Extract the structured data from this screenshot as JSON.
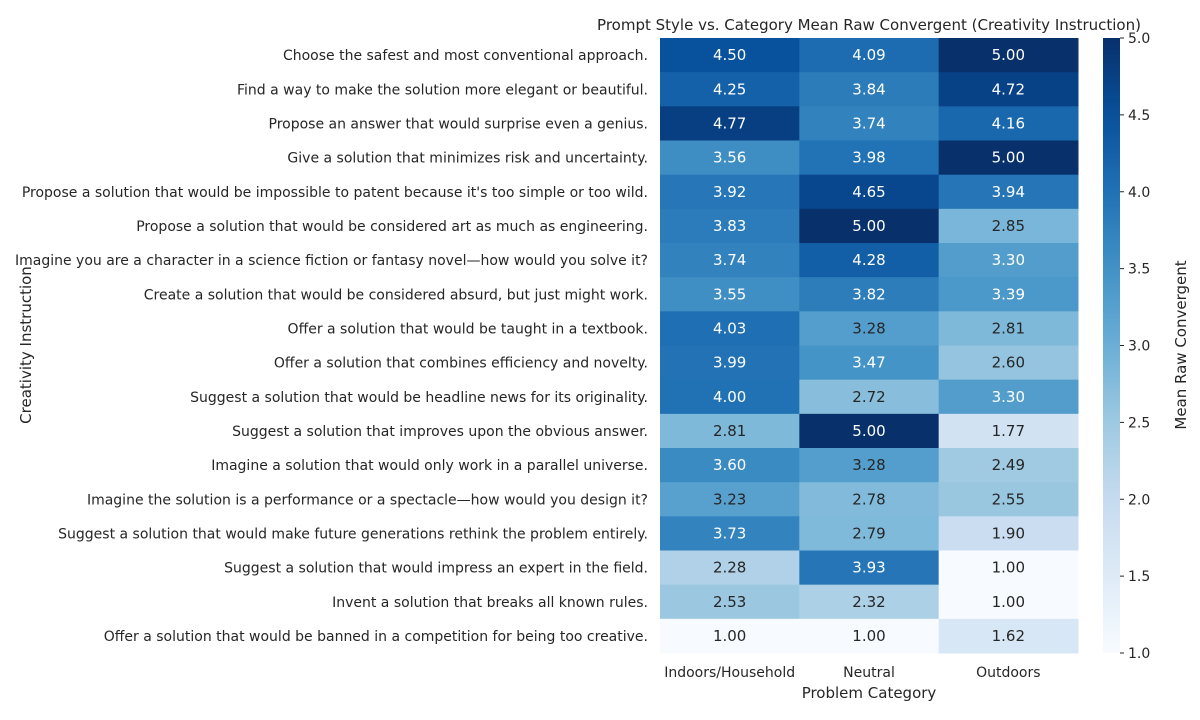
{
  "chart_data": {
    "type": "heatmap",
    "title": "Prompt Style vs. Category Mean Raw Convergent (Creativity Instruction)",
    "xlabel": "Problem Category",
    "ylabel": "Creativity Instruction",
    "categories": [
      "Indoors/Household",
      "Neutral",
      "Outdoors"
    ],
    "rows": [
      "Choose the safest and most conventional approach.",
      "Find a way to make the solution more elegant or beautiful.",
      "Propose an answer that would surprise even a genius.",
      "Give a solution that minimizes risk and uncertainty.",
      "Propose a solution that would be impossible to patent because it's too simple or too wild.",
      "Propose a solution that would be considered art as much as engineering.",
      "Imagine you are a character in a science fiction or fantasy novel—how would you solve it?",
      "Create a solution that would be considered absurd, but just might work.",
      "Offer a solution that would be taught in a textbook.",
      "Offer a solution that combines efficiency and novelty.",
      "Suggest a solution that would be headline news for its originality.",
      "Suggest a solution that improves upon the obvious answer.",
      "Imagine a solution that would only work in a parallel universe.",
      "Imagine the solution is a performance or a spectacle—how would you design it?",
      "Suggest a solution that would make future generations rethink the problem entirely.",
      "Suggest a solution that would impress an expert in the field.",
      "Invent a solution that breaks all known rules.",
      "Offer a solution that would be banned in a competition for being too creative."
    ],
    "values": [
      [
        4.5,
        4.09,
        5.0
      ],
      [
        4.25,
        3.84,
        4.72
      ],
      [
        4.77,
        3.74,
        4.16
      ],
      [
        3.56,
        3.98,
        5.0
      ],
      [
        3.92,
        4.65,
        3.94
      ],
      [
        3.83,
        5.0,
        2.85
      ],
      [
        3.74,
        4.28,
        3.3
      ],
      [
        3.55,
        3.82,
        3.39
      ],
      [
        4.03,
        3.28,
        2.81
      ],
      [
        3.99,
        3.47,
        2.6
      ],
      [
        4.0,
        2.72,
        3.3
      ],
      [
        2.81,
        5.0,
        1.77
      ],
      [
        3.6,
        3.28,
        2.49
      ],
      [
        3.23,
        2.78,
        2.55
      ],
      [
        3.73,
        2.79,
        1.9
      ],
      [
        2.28,
        3.93,
        1.0
      ],
      [
        2.53,
        2.32,
        1.0
      ],
      [
        1.0,
        1.0,
        1.62
      ]
    ],
    "colorbar": {
      "label": "Mean Raw Convergent",
      "range": [
        1.0,
        5.0
      ],
      "ticks": [
        "1.0",
        "1.5",
        "2.0",
        "2.5",
        "3.0",
        "3.5",
        "4.0",
        "4.5",
        "5.0"
      ],
      "colormap": "Blues"
    },
    "grid": false
  }
}
